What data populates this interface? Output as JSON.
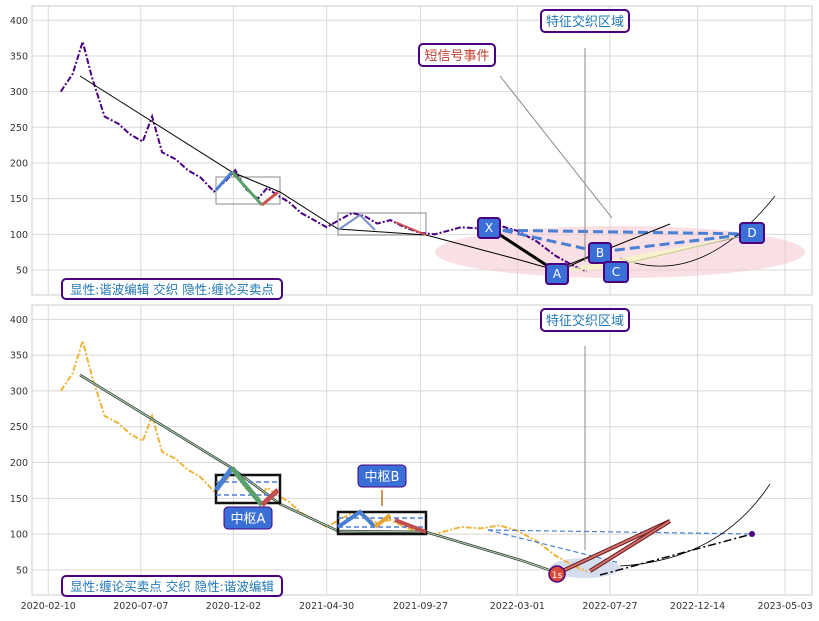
{
  "colors": {
    "background": "#eaeaf2",
    "price_top": "#4b0082",
    "price_bottom": "#f0b43c",
    "annotation_box": "#4b0082",
    "label_fill": "#3a6fd8"
  },
  "chart_data": [
    {
      "type": "line",
      "title": "",
      "xlabel": "",
      "ylabel": "",
      "ylim": [
        15,
        420
      ],
      "yticks": [
        50,
        100,
        150,
        200,
        250,
        300,
        350,
        400
      ],
      "grid": true,
      "series": [
        {
          "name": "",
          "x": [
            "2020-03-01",
            "2020-03-20",
            "2020-04-05",
            "2020-04-20",
            "2020-05-10",
            "2020-06-01",
            "2020-06-20",
            "2020-07-10",
            "2020-07-25",
            "2020-08-10",
            "2020-09-01",
            "2020-09-20",
            "2020-10-10",
            "2020-11-01",
            "2020-11-20",
            "2020-12-05",
            "2020-12-20",
            "2021-01-10",
            "2021-01-25",
            "2021-02-10",
            "2021-03-01",
            "2021-03-20",
            "2021-04-10",
            "2021-04-30",
            "2021-05-20",
            "2021-06-10",
            "2021-07-01",
            "2021-07-20",
            "2021-08-10",
            "2021-09-01",
            "2021-09-27",
            "2021-10-20",
            "2021-11-10",
            "2021-12-01",
            "2022-01-01",
            "2022-02-01",
            "2022-03-01",
            "2022-04-01",
            "2022-05-01",
            "2022-06-01",
            "2022-06-20"
          ],
          "values": [
            300,
            325,
            370,
            320,
            265,
            255,
            240,
            230,
            265,
            215,
            205,
            190,
            180,
            160,
            175,
            190,
            165,
            150,
            165,
            155,
            145,
            130,
            120,
            110,
            120,
            130,
            125,
            115,
            120,
            110,
            102,
            100,
            105,
            110,
            108,
            112,
            105,
            90,
            70,
            55,
            48
          ]
        }
      ],
      "annotations": {
        "top_left_box": "显性:谐波编辑 交织 隐性:缠论买卖点",
        "event_label": "短信号事件",
        "region_label": "特征交织区域",
        "pattern_points": [
          {
            "label": "X",
            "x": "2022-03-01",
            "y": 108
          },
          {
            "label": "A",
            "x": "2022-06-15",
            "y": 52
          },
          {
            "label": "B",
            "x": "2022-08-01",
            "y": 77
          },
          {
            "label": "C",
            "x": "2022-08-20",
            "y": 55
          },
          {
            "label": "D",
            "x": "2023-03-10",
            "y": 103
          }
        ]
      }
    },
    {
      "type": "line",
      "title": "",
      "xlabel": "",
      "ylabel": "",
      "ylim": [
        15,
        420
      ],
      "yticks": [
        50,
        100,
        150,
        200,
        250,
        300,
        350,
        400
      ],
      "xticks": [
        "2020-02-10",
        "2020-07-07",
        "2020-12-02",
        "2021-04-30",
        "2021-09-27",
        "2022-03-01",
        "2022-07-27",
        "2022-12-14",
        "2023-05-03"
      ],
      "grid": true,
      "annotations": {
        "bottom_left_box": "显性:缠论买卖点 交织 隐性:谐波编辑",
        "zhongshu_a": "中枢A",
        "zhongshu_b": "中枢B",
        "region_label": "特征交织区域",
        "marker_label": "1s"
      }
    }
  ]
}
